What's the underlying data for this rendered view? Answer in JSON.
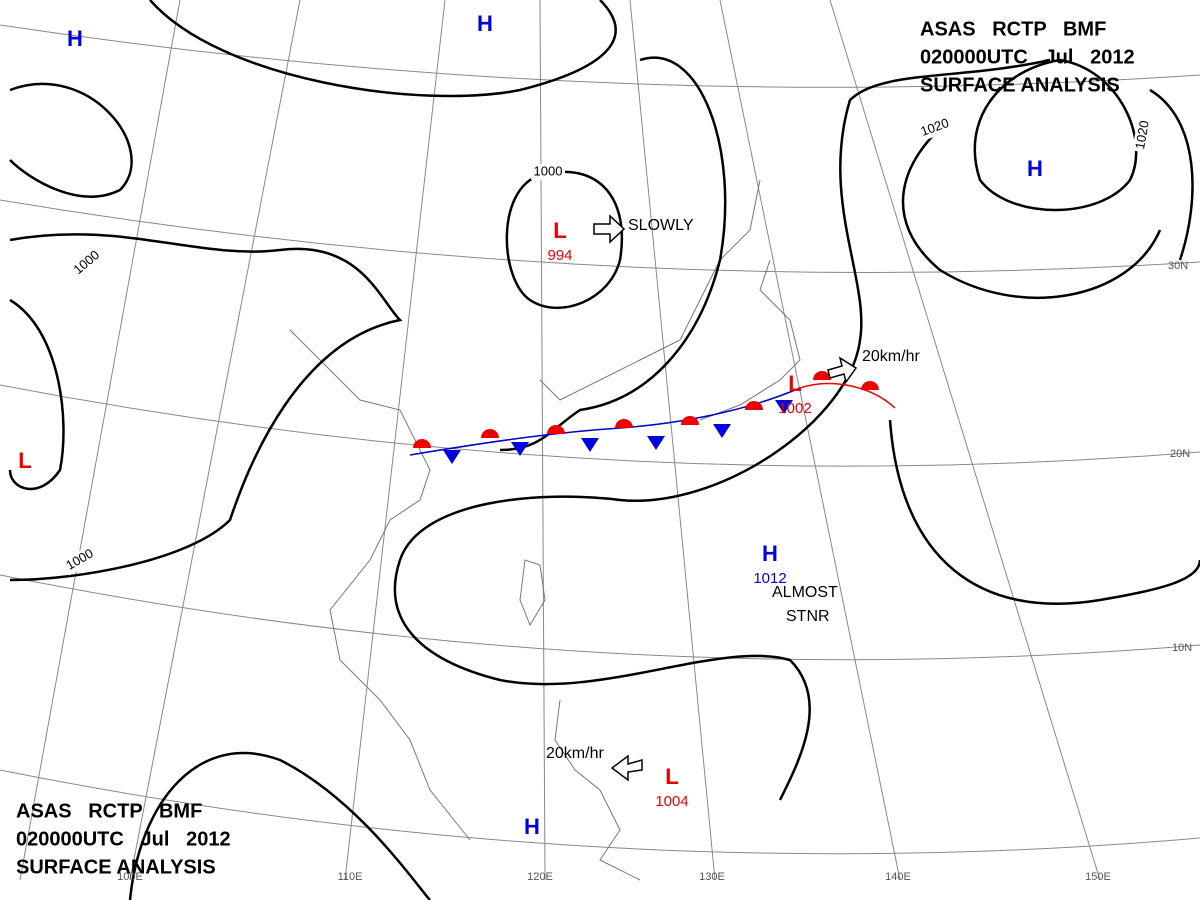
{
  "header": {
    "lines": [
      "ASAS   RCTP   BMF",
      "020000UTC   Jul   2012",
      "SURFACE ANALYSIS"
    ]
  },
  "footer": {
    "lines": [
      "ASAS   RCTP   BMF",
      "020000UTC   Jul   2012",
      "SURFACE ANALYSIS"
    ]
  },
  "pressure_centers": [
    {
      "symbol": "H"
    },
    {
      "symbol": "H"
    },
    {
      "symbol": "L",
      "pressure": "994"
    },
    {
      "symbol": "H"
    },
    {
      "symbol": "L",
      "pressure": "1002"
    },
    {
      "symbol": "L"
    },
    {
      "symbol": "H",
      "pressure": "1012"
    },
    {
      "symbol": "L",
      "pressure": "1004"
    },
    {
      "symbol": "H"
    }
  ],
  "isobar_labels": [
    "1000",
    "1000",
    "1000",
    "1020",
    "1020"
  ],
  "annotations": [
    "SLOWLY",
    "20km/hr",
    "ALMOST",
    "STNR",
    "20km/hr"
  ],
  "latitude_labels": [
    "30N",
    "20N",
    "10N"
  ],
  "longitude_labels": [
    "100E",
    "110E",
    "120E",
    "130E",
    "140E",
    "150E"
  ]
}
